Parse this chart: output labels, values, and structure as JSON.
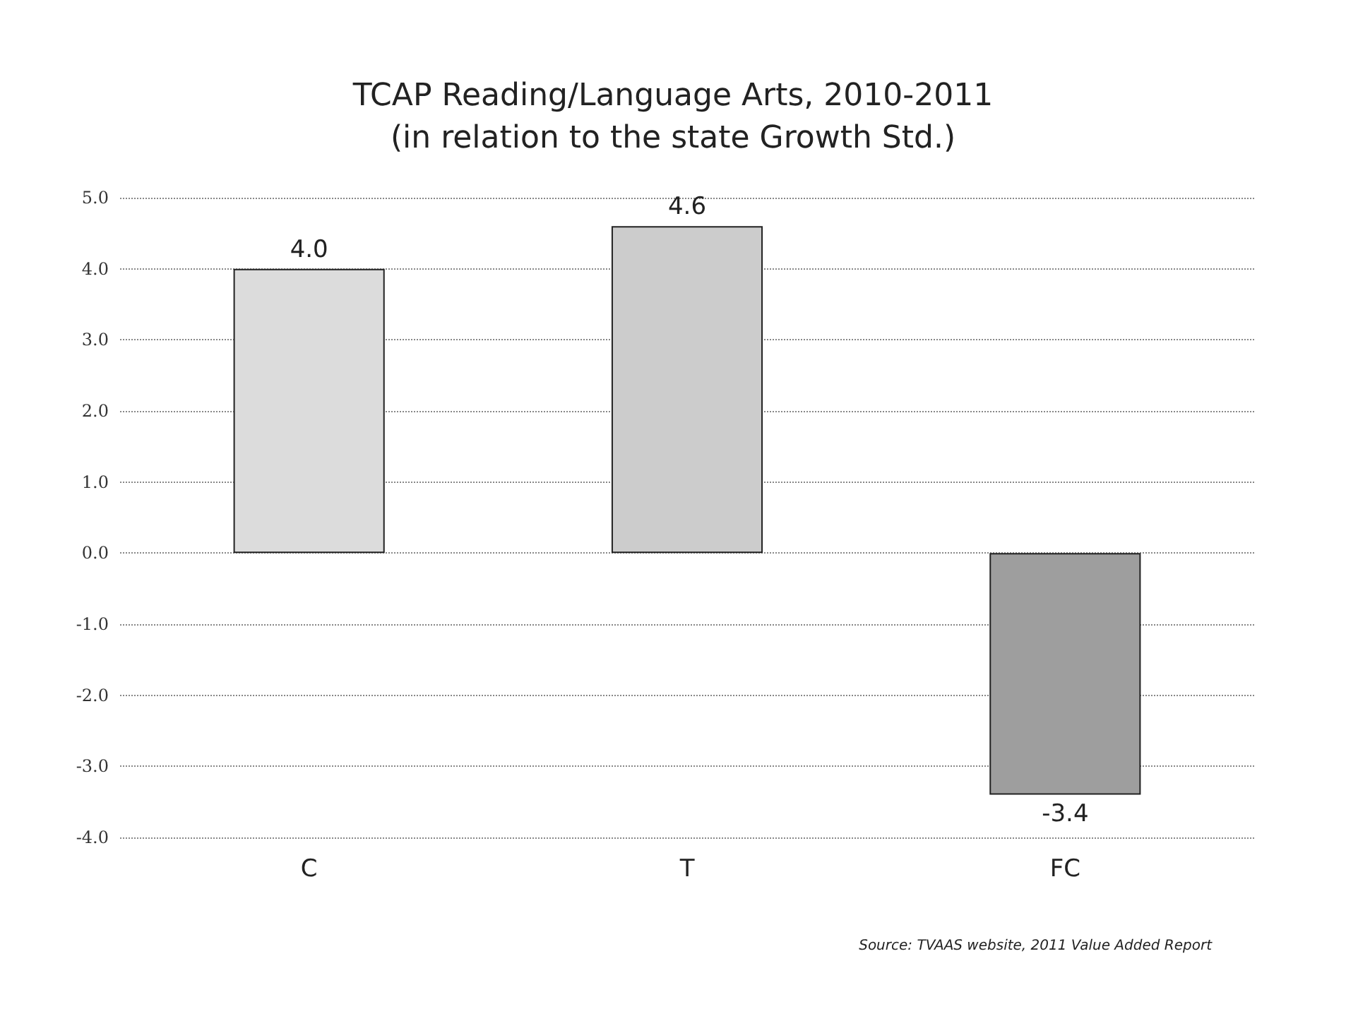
{
  "chart_data": {
    "type": "bar",
    "title": "TCAP Reading/Language Arts, 2010-2011",
    "subtitle": "(in relation to the state Growth Std.)",
    "categories": [
      "C",
      "T",
      "FC"
    ],
    "values": [
      4.0,
      4.6,
      -3.4
    ],
    "colors": [
      "#dcdcdc",
      "#cccccc",
      "#9e9e9e"
    ],
    "value_labels": [
      "4.0",
      "4.6",
      "-3.4"
    ],
    "ylim": [
      -4,
      5
    ],
    "yticks": [
      {
        "value": 5,
        "label": "5.0"
      },
      {
        "value": 4,
        "label": "4.0"
      },
      {
        "value": 3,
        "label": "3.0"
      },
      {
        "value": 2,
        "label": "2.0"
      },
      {
        "value": 1,
        "label": "1.0"
      },
      {
        "value": 0,
        "label": "0.0"
      },
      {
        "value": -1,
        "label": "-1.0"
      },
      {
        "value": -2,
        "label": "-2.0"
      },
      {
        "value": -3,
        "label": "-3.0"
      },
      {
        "value": -4,
        "label": "-4.0"
      }
    ],
    "grid": "y",
    "annotations": [
      "Source: TVAAS website, 2011 Value Added Report"
    ]
  }
}
